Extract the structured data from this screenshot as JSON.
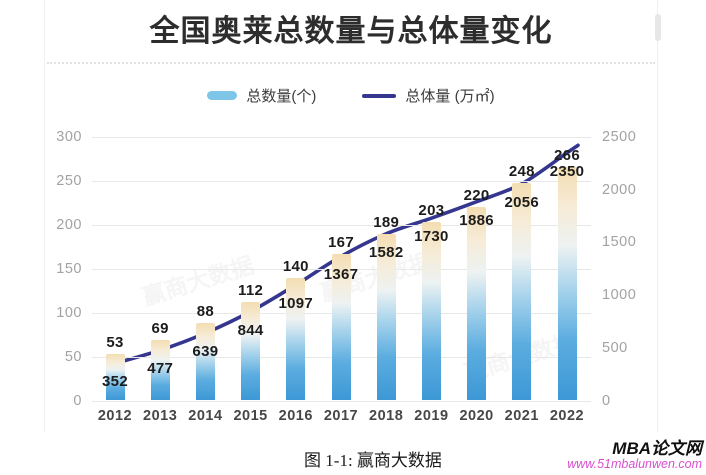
{
  "title": "全国奥莱总数量与总体量变化",
  "legend": [
    {
      "label": "总数量(个)"
    },
    {
      "label": "总体量 (万㎡)"
    }
  ],
  "chart_data": {
    "type": "bar+line combo",
    "title": "全国奥莱总数量与总体量变化",
    "categories": [
      "2012",
      "2013",
      "2014",
      "2015",
      "2016",
      "2017",
      "2018",
      "2019",
      "2020",
      "2021",
      "2022"
    ],
    "series": [
      {
        "name": "总数量(个)",
        "type": "bar",
        "axis": "left",
        "values": [
          53,
          69,
          88,
          112,
          140,
          167,
          189,
          203,
          220,
          248,
          266
        ]
      },
      {
        "name": "总体量 (万㎡)",
        "type": "line",
        "axis": "right",
        "values": [
          352,
          477,
          639,
          844,
          1097,
          1367,
          1582,
          1730,
          1886,
          2056,
          2350
        ]
      }
    ],
    "left_axis": {
      "min": 0,
      "max": 300,
      "ticks": [
        0,
        50,
        100,
        150,
        200,
        250,
        300
      ]
    },
    "right_axis": {
      "min": 0,
      "max": 2500,
      "ticks": [
        0,
        500,
        1000,
        1500,
        2000,
        2500
      ]
    },
    "grid": true,
    "legend_position": "top",
    "data_labels": true
  },
  "background_watermark_text": "赢商大数据",
  "caption": "图 1-1: 赢商大数据",
  "site_watermark": {
    "name": "MBA论文网",
    "url": "www.51mbalunwen.com"
  },
  "colors": {
    "bar_gradient_top": "#f3ddb2",
    "bar_gradient_upper_mid": "#f6ecd8",
    "bar_gradient_mid": "#edf2f2",
    "bar_gradient_lower_mid": "#a9d4ec",
    "bar_gradient_deep": "#5cade0",
    "bar_gradient_bottom": "#3d98d5",
    "line": "#35378f",
    "legend_bar_swatch": "#7ec6e8",
    "grid": "#e8e8e8",
    "axis_tick": "#a2a2a2",
    "year_label": "#474747",
    "value_label": "#1c1c1c",
    "site_url_pink": "#d94fd0"
  }
}
